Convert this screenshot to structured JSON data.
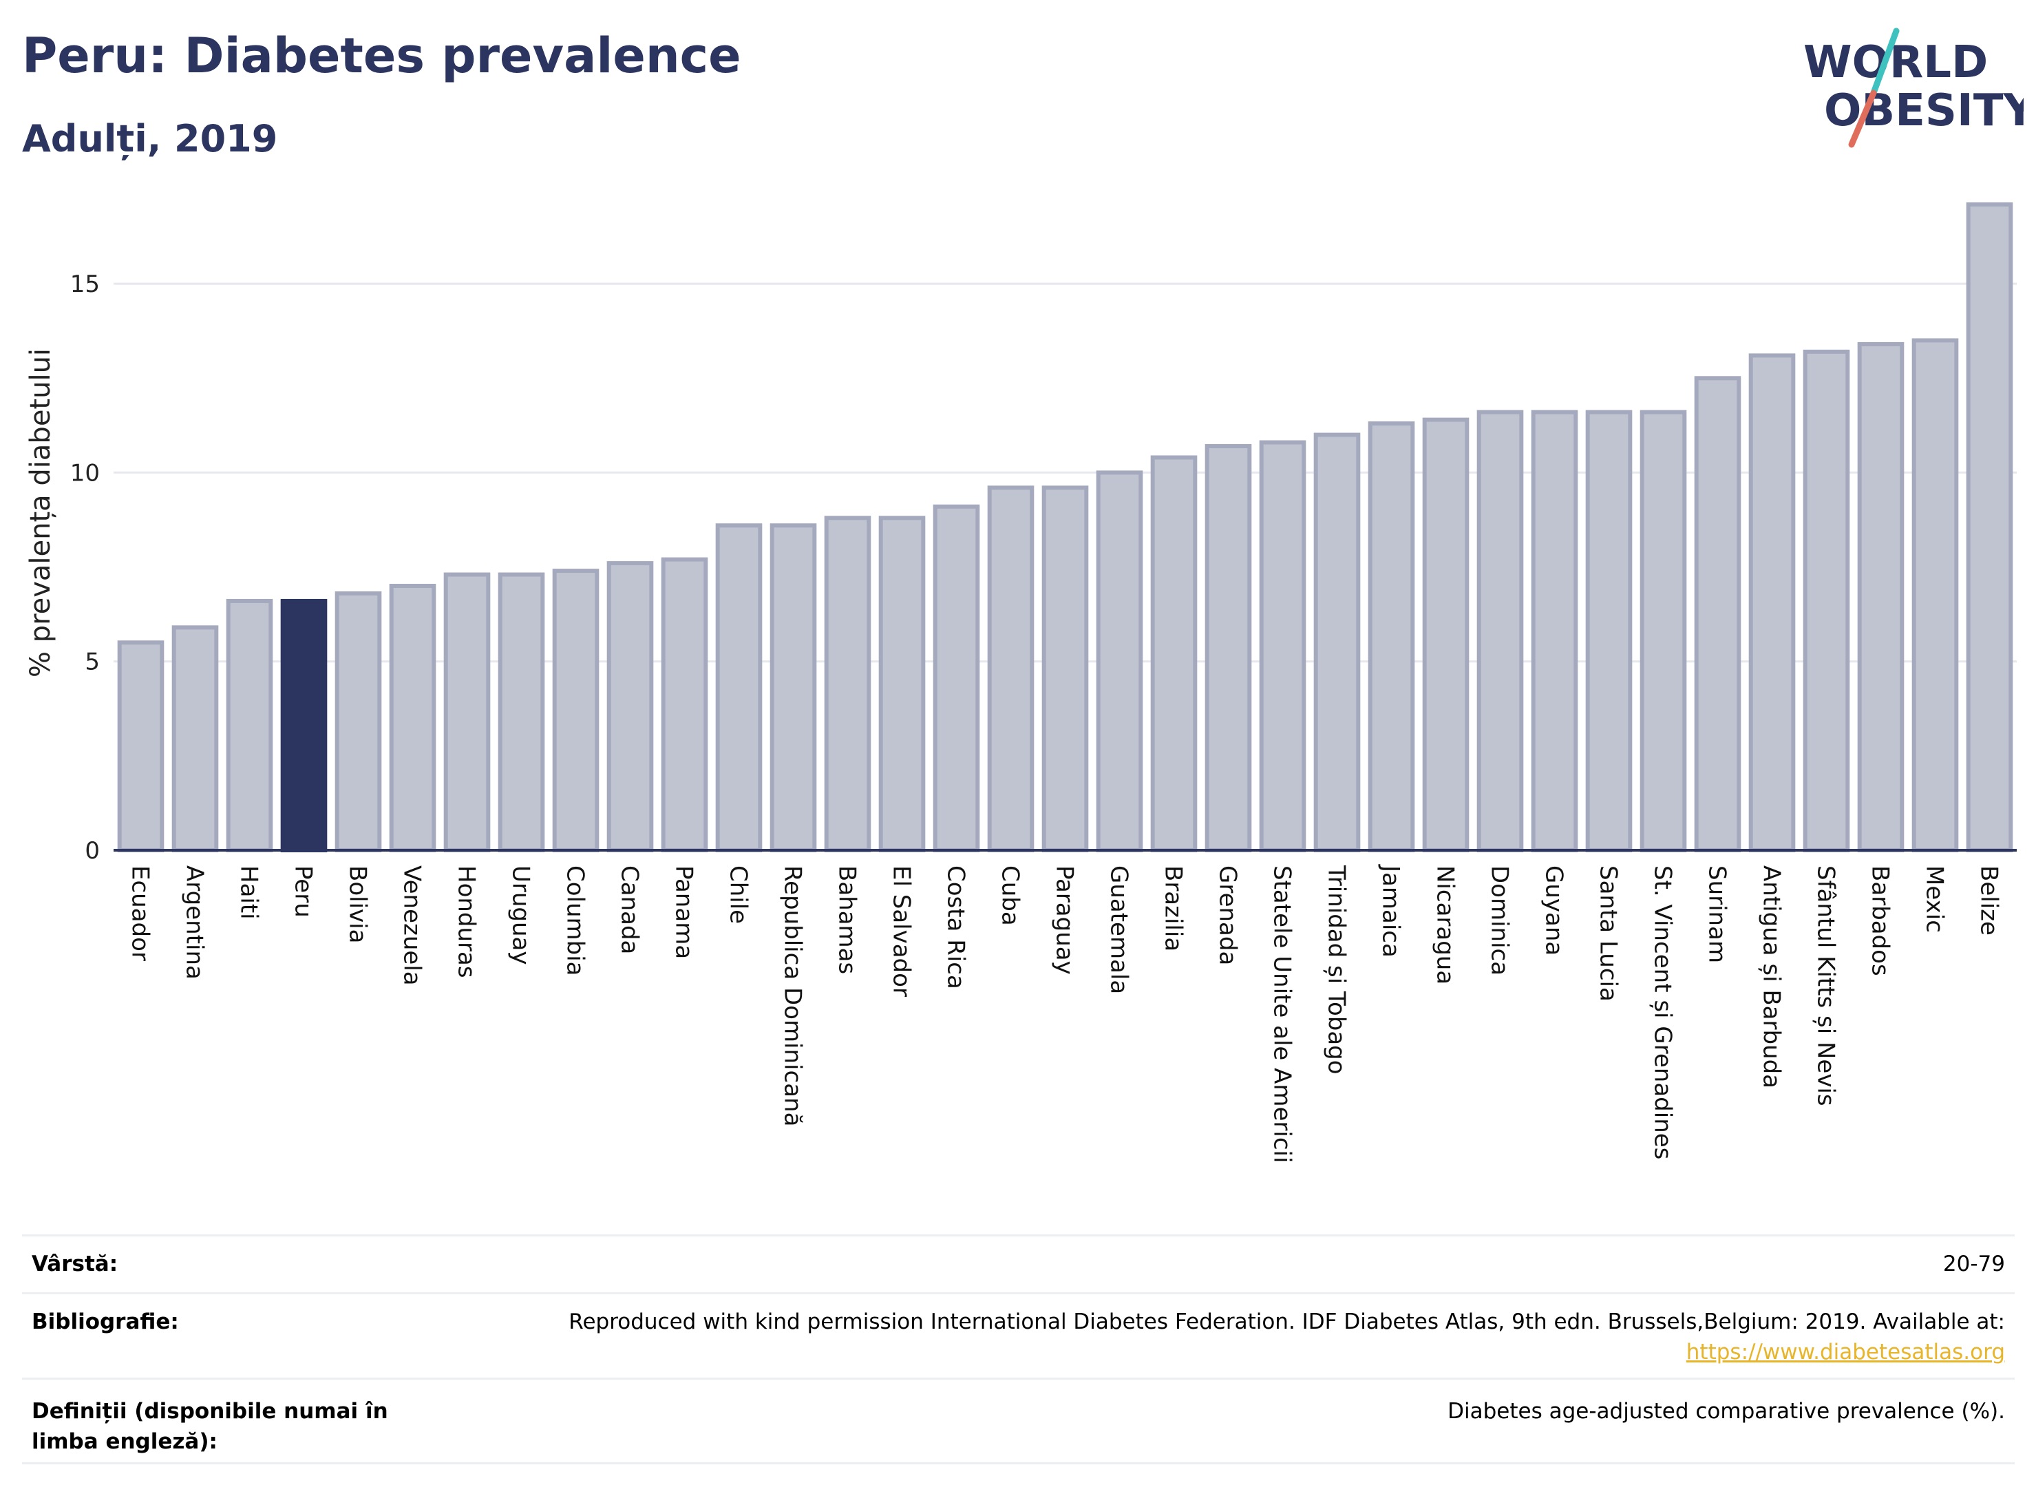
{
  "header": {
    "title": "Peru: Diabetes prevalence",
    "subtitle": "Adulți, 2019"
  },
  "logo": {
    "line1": "WORLD",
    "line2": "OBESITY",
    "slash_colors": [
      "#3ec2c0",
      "#e06c5b"
    ],
    "text_color": "#2b3560"
  },
  "chart_data": {
    "type": "bar",
    "ylabel": "% prevalența diabetului",
    "ylim": [
      0,
      17.5
    ],
    "yticks": [
      0,
      5,
      10,
      15
    ],
    "grid": true,
    "highlight": "Peru",
    "colors": {
      "bar": "#c0c3d0",
      "bar_border": "#a5a9bd",
      "highlight": "#2b3560",
      "axis": "#2b3560"
    },
    "categories": [
      "Ecuador",
      "Argentina",
      "Haiti",
      "Peru",
      "Bolivia",
      "Venezuela",
      "Honduras",
      "Uruguay",
      "Columbia",
      "Canada",
      "Panama",
      "Chile",
      "Republica Dominicană",
      "Bahamas",
      "El Salvador",
      "Costa Rica",
      "Cuba",
      "Paraguay",
      "Guatemala",
      "Brazilia",
      "Grenada",
      "Statele Unite ale Americii",
      "Trinidad și Tobago",
      "Jamaica",
      "Nicaragua",
      "Dominica",
      "Guyana",
      "Santa Lucia",
      "St. Vincent și Grenadines",
      "Surinam",
      "Antigua și Barbuda",
      "Sfântul Kitts și Nevis",
      "Barbados",
      "Mexic",
      "Belize"
    ],
    "values": [
      5.5,
      5.9,
      6.6,
      6.6,
      6.8,
      7.0,
      7.3,
      7.3,
      7.4,
      7.6,
      7.7,
      8.6,
      8.6,
      8.8,
      8.8,
      9.1,
      9.6,
      9.6,
      10.0,
      10.4,
      10.7,
      10.8,
      11.0,
      11.3,
      11.4,
      11.6,
      11.6,
      11.6,
      11.6,
      12.5,
      13.1,
      13.2,
      13.4,
      13.5,
      17.1
    ]
  },
  "info": {
    "rows": [
      {
        "label": "Vârstă:",
        "value": "20-79"
      },
      {
        "label": "Bibliografie:",
        "value": "Reproduced with kind permission International Diabetes Federation. IDF Diabetes Atlas, 9th edn. Brussels,Belgium: 2019. Available at:",
        "link": "https://www.diabetesatlas.org"
      },
      {
        "label": "Definiții (disponibile numai în limba engleză):",
        "value": "Diabetes age-adjusted comparative prevalence (%)."
      }
    ]
  }
}
